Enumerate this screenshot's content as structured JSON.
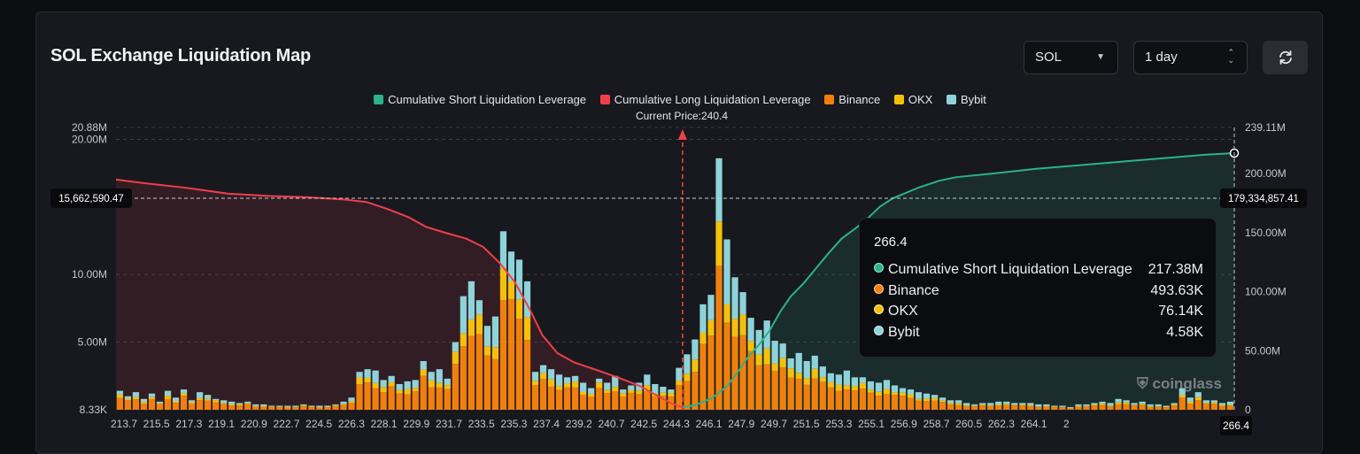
{
  "page": {
    "title": "SOL Exchange Liquidation Map",
    "coin_select": "SOL",
    "range_select": "1 day",
    "watermark": "coinglass"
  },
  "legend": {
    "items": [
      {
        "label": "Cumulative Short Liquidation Leverage",
        "color": "#2bb28a"
      },
      {
        "label": "Cumulative Long Liquidation Leverage",
        "color": "#ef3f4b"
      },
      {
        "label": "Binance",
        "color": "#f0800e"
      },
      {
        "label": "OKX",
        "color": "#f5c00c"
      },
      {
        "label": "Bybit",
        "color": "#8fd3da"
      }
    ],
    "current_price_label": "Current Price:240.4"
  },
  "tooltip": {
    "title": "266.4",
    "rows": [
      {
        "label": "Cumulative Short Liquidation Leverage",
        "value": "217.38M",
        "color": "#2bb28a"
      },
      {
        "label": "Binance",
        "value": "493.63K",
        "color": "#f0800e"
      },
      {
        "label": "OKX",
        "value": "76.14K",
        "color": "#f5c00c"
      },
      {
        "label": "Bybit",
        "value": "4.58K",
        "color": "#8fd3da"
      }
    ]
  },
  "chart_data": {
    "type": "bar",
    "x_ticks": [
      "213.7",
      "215.5",
      "217.3",
      "219.1",
      "220.9",
      "222.7",
      "224.5",
      "226.3",
      "228.1",
      "229.9",
      "231.7",
      "233.5",
      "235.3",
      "237.4",
      "239.2",
      "240.7",
      "242.5",
      "244.3",
      "246.1",
      "247.9",
      "249.7",
      "251.5",
      "253.3",
      "255.1",
      "256.9",
      "258.7",
      "260.5",
      "262.3",
      "264.1",
      "2"
    ],
    "x_range": [
      213.7,
      266.4
    ],
    "y_left_ticks": [
      "20.88M",
      "20.00M",
      "10.00M",
      "5.00M",
      "8.33K"
    ],
    "y_left_range": [
      0,
      20880000
    ],
    "y_right_ticks": [
      "239.11M",
      "200.00M",
      "150.00M",
      "100.00M",
      "50.00M",
      "0"
    ],
    "y_right_range": [
      0,
      239110000
    ],
    "crosshair_left_label": "15,662,590.47",
    "crosshair_right_label": "179,334,857.41",
    "crosshair_x_label": "266.4",
    "current_price": 240.4,
    "colors": {
      "binance": "#f0800e",
      "okx": "#f5c00c",
      "bybit": "#8fd3da",
      "short": "#2bb28a",
      "long": "#ef3f4b"
    },
    "series": [
      {
        "name": "Cumulative Long Liquidation Leverage",
        "points": [
          [
            213.7,
            195
          ],
          [
            215,
            192
          ],
          [
            217,
            188
          ],
          [
            219,
            183
          ],
          [
            221,
            181
          ],
          [
            222.7,
            180
          ],
          [
            224.5,
            178
          ],
          [
            225.5,
            176
          ],
          [
            226.5,
            170
          ],
          [
            227.5,
            163
          ],
          [
            228.3,
            155
          ],
          [
            229.2,
            150
          ],
          [
            230.2,
            145
          ],
          [
            231,
            138
          ],
          [
            231.8,
            124
          ],
          [
            232.5,
            108
          ],
          [
            233.2,
            85
          ],
          [
            233.8,
            63
          ],
          [
            234.5,
            48
          ],
          [
            235.3,
            40
          ],
          [
            236.3,
            34
          ],
          [
            237.4,
            27
          ],
          [
            238.4,
            20
          ],
          [
            239.2,
            12
          ],
          [
            239.8,
            6
          ],
          [
            240.4,
            2
          ]
        ]
      },
      {
        "name": "Cumulative Short Liquidation Leverage",
        "points": [
          [
            240.4,
            2
          ],
          [
            241,
            4
          ],
          [
            241.8,
            10
          ],
          [
            242.5,
            20
          ],
          [
            243,
            32
          ],
          [
            243.5,
            45
          ],
          [
            244,
            55
          ],
          [
            244.5,
            67
          ],
          [
            245,
            83
          ],
          [
            245.5,
            96
          ],
          [
            246.1,
            107
          ],
          [
            246.7,
            120
          ],
          [
            247.3,
            133
          ],
          [
            247.9,
            145
          ],
          [
            248.5,
            153
          ],
          [
            249,
            160
          ],
          [
            249.7,
            172
          ],
          [
            250.3,
            179
          ],
          [
            251.5,
            188
          ],
          [
            252.5,
            194
          ],
          [
            253.3,
            197
          ],
          [
            255,
            200
          ],
          [
            257,
            204
          ],
          [
            259,
            207
          ],
          [
            261,
            210
          ],
          [
            263,
            213
          ],
          [
            265,
            216
          ],
          [
            266.4,
            217.38
          ]
        ]
      }
    ],
    "bars_total_millions": [
      1.4,
      1.0,
      1.3,
      0.8,
      1.2,
      0.6,
      1.4,
      0.9,
      1.5,
      0.7,
      1.3,
      1.1,
      0.8,
      0.7,
      0.6,
      0.5,
      0.6,
      0.4,
      0.4,
      0.3,
      0.3,
      0.3,
      0.3,
      0.4,
      0.3,
      0.3,
      0.3,
      0.4,
      0.6,
      0.9,
      2.8,
      3.0,
      2.9,
      2.2,
      2.5,
      1.9,
      2.1,
      2.2,
      3.6,
      2.8,
      3.0,
      2.3,
      5.0,
      8.4,
      9.5,
      8.1,
      6.2,
      6.9,
      13.2,
      11.7,
      11.1,
      9.5,
      2.8,
      3.3,
      3.0,
      2.6,
      2.4,
      2.5,
      2.0,
      1.6,
      2.3,
      2.0,
      2.5,
      1.5,
      1.8,
      2.0,
      2.6,
      1.9,
      1.7,
      1.5,
      3.1,
      4.1,
      5.2,
      7.8,
      8.5,
      18.6,
      12.6,
      9.8,
      8.7,
      6.8,
      5.9,
      6.6,
      5.1,
      4.9,
      3.8,
      4.2,
      3.6,
      4.0,
      3.2,
      2.7,
      2.6,
      2.9,
      2.4,
      2.4,
      2.1,
      2.0,
      2.2,
      1.8,
      1.6,
      1.5,
      1.3,
      1.2,
      1.1,
      0.9,
      0.7,
      0.7,
      0.5,
      0.4,
      0.5,
      0.5,
      0.6,
      0.6,
      0.5,
      0.5,
      0.5,
      0.4,
      0.4,
      0.3,
      0.3,
      0.2,
      0.4,
      0.4,
      0.5,
      0.6,
      0.5,
      0.8,
      0.7,
      0.5,
      0.6,
      0.4,
      0.4,
      0.3,
      0.5,
      1.6,
      0.9,
      1.3,
      0.7,
      0.7,
      0.5,
      0.6
    ],
    "bars_long_side_count": 66
  }
}
